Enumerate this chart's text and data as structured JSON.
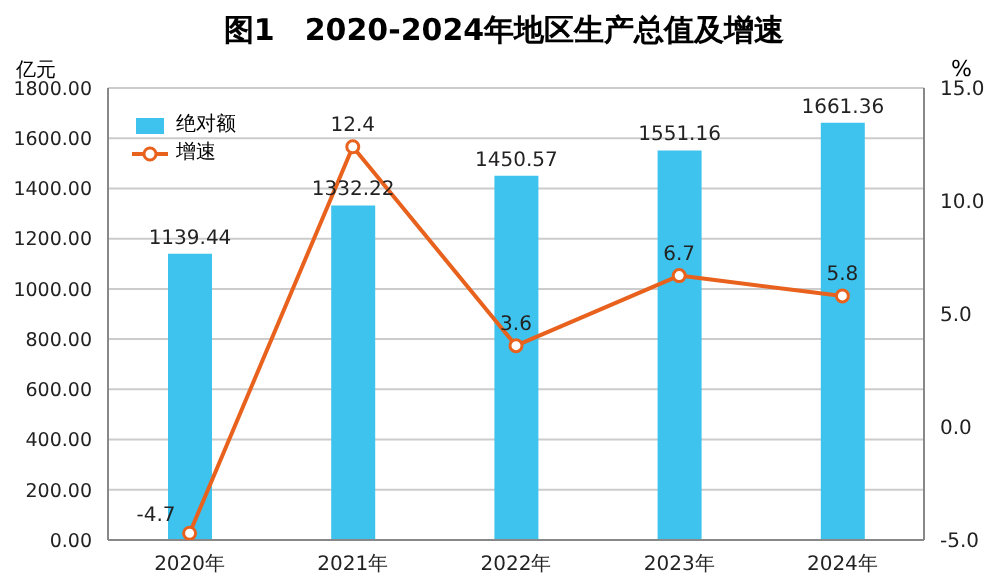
{
  "chart_data": {
    "type": "bar",
    "title": "图1　2020-2024年地区生产总值及增速",
    "ylabel": "亿元",
    "y2label": "%",
    "categories": [
      "2020年",
      "2021年",
      "2022年",
      "2023年",
      "2024年"
    ],
    "series": [
      {
        "name": "绝对额",
        "color": "#3ec3ee",
        "values": [
          1139.44,
          1332.22,
          1450.57,
          1551.16,
          1661.36
        ]
      },
      {
        "name": "增速",
        "type": "line",
        "axis": "y2",
        "color": "#e8621e",
        "values": [
          -4.7,
          12.4,
          3.6,
          6.7,
          5.8
        ]
      }
    ],
    "ylim": [
      0,
      1800
    ],
    "yticks": [
      {
        "value": 0,
        "label": "0.00"
      },
      {
        "value": 200,
        "label": "200.00"
      },
      {
        "value": 400,
        "label": "400.00"
      },
      {
        "value": 600,
        "label": "600.00"
      },
      {
        "value": 800,
        "label": "800.00"
      },
      {
        "value": 1000,
        "label": "1000.00"
      },
      {
        "value": 1200,
        "label": "1200.00"
      },
      {
        "value": 1400,
        "label": "1400.00"
      },
      {
        "value": 1600,
        "label": "1600.00"
      },
      {
        "value": 1800,
        "label": "1800.00"
      }
    ],
    "y2lim": [
      -5,
      15
    ],
    "y2ticks": [
      {
        "value": -5,
        "label": "-5.0"
      },
      {
        "value": 0,
        "label": "0.0"
      },
      {
        "value": 5,
        "label": "5.0"
      },
      {
        "value": 10,
        "label": "10.0"
      },
      {
        "value": 15,
        "label": "15.0"
      }
    ],
    "grid": "y",
    "legend": "top left",
    "marker": "circle",
    "data_labels": true
  }
}
